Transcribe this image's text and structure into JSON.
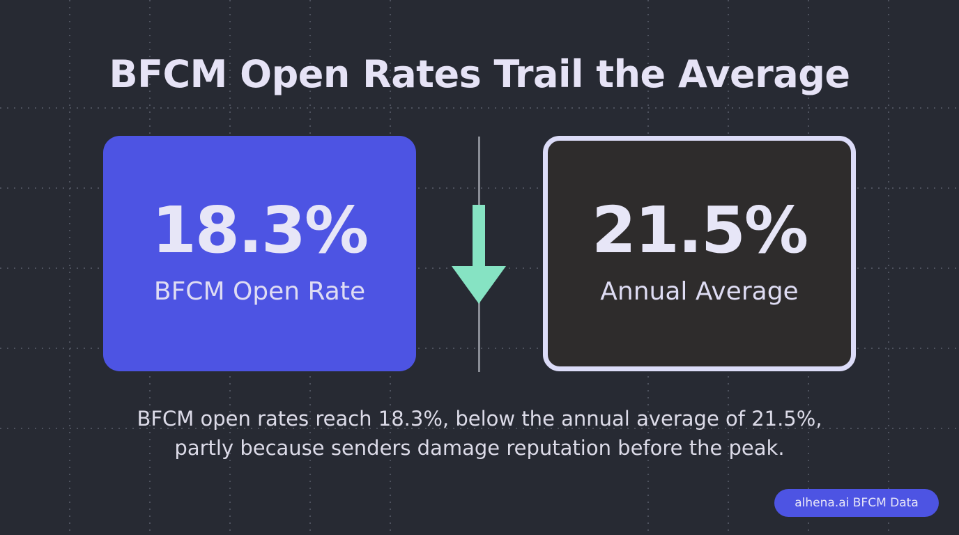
{
  "title": "BFCM Open Rates Trail the Average",
  "left_card": {
    "value": "18.3%",
    "label": "BFCM Open Rate",
    "color": "#4d54e3"
  },
  "right_card": {
    "value": "21.5%",
    "label": "Annual Average",
    "color": "#2e2c2c",
    "border_color": "#dcdcf8"
  },
  "arrow": {
    "icon": "arrow-down-icon",
    "color": "#86e3c3"
  },
  "caption": {
    "line1": "BFCM open rates reach 18.3%, below the annual average of 21.5%,",
    "line2": "partly because senders damage reputation before the peak."
  },
  "badge": {
    "label": "alhena.ai BFCM Data",
    "color": "#4d54e3"
  },
  "background": "#272a33"
}
